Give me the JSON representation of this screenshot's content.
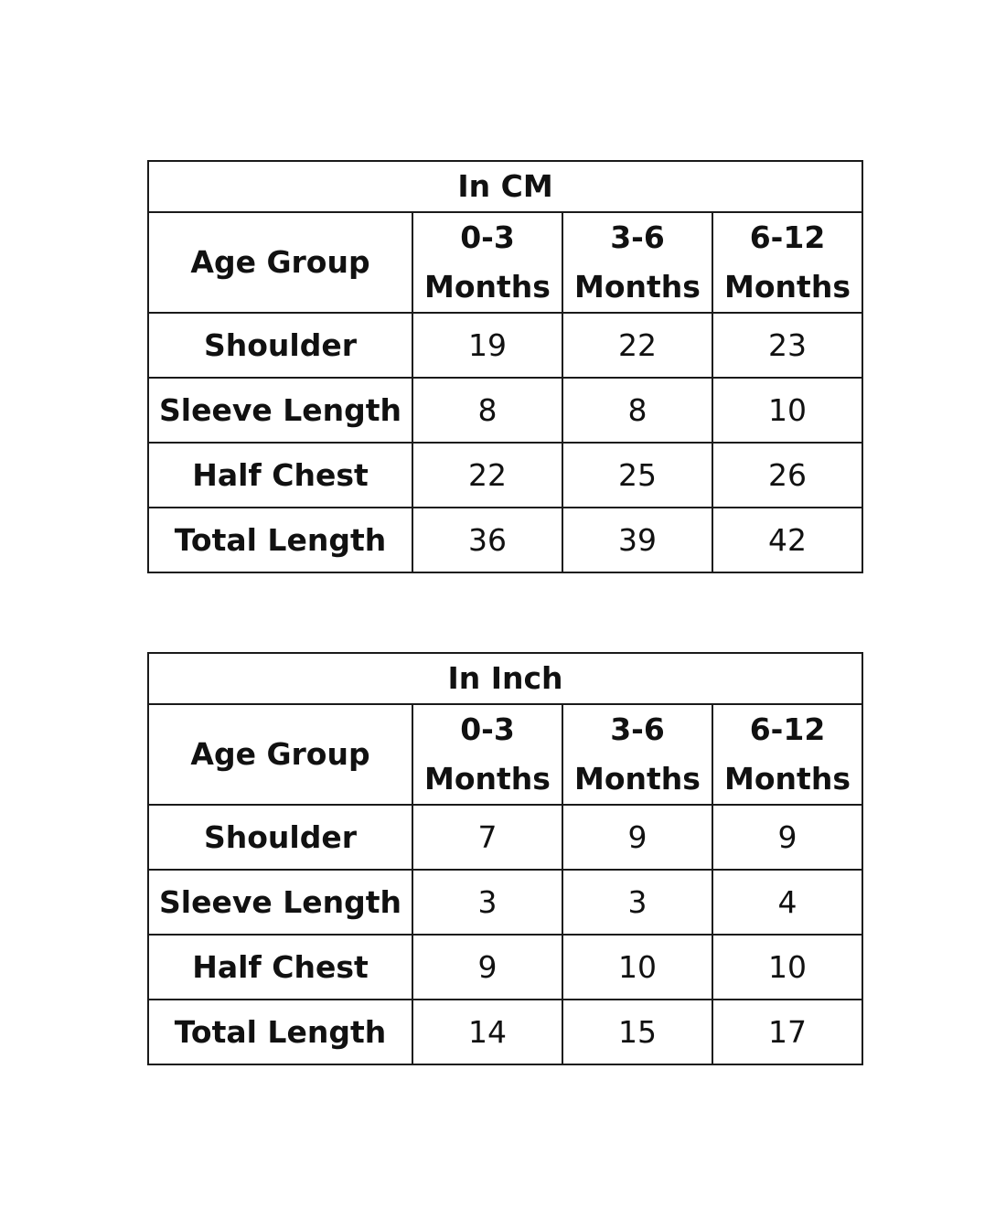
{
  "tables": [
    {
      "title": "In CM",
      "header_label": "Age Group",
      "columns": [
        {
          "line1": "0-3",
          "line2": "Months"
        },
        {
          "line1": "3-6",
          "line2": "Months"
        },
        {
          "line1": "6-12",
          "line2": "Months"
        }
      ],
      "rows": [
        {
          "label": "Shoulder",
          "values": [
            "19",
            "22",
            "23"
          ]
        },
        {
          "label": "Sleeve Length",
          "values": [
            "8",
            "8",
            "10"
          ]
        },
        {
          "label": "Half Chest",
          "values": [
            "22",
            "25",
            "26"
          ]
        },
        {
          "label": "Total Length",
          "values": [
            "36",
            "39",
            "42"
          ]
        }
      ]
    },
    {
      "title": "In Inch",
      "header_label": "Age Group",
      "columns": [
        {
          "line1": "0-3",
          "line2": "Months"
        },
        {
          "line1": "3-6",
          "line2": "Months"
        },
        {
          "line1": "6-12",
          "line2": "Months"
        }
      ],
      "rows": [
        {
          "label": "Shoulder",
          "values": [
            "7",
            "9",
            "9"
          ]
        },
        {
          "label": "Sleeve Length",
          "values": [
            "3",
            "3",
            "4"
          ]
        },
        {
          "label": "Half Chest",
          "values": [
            "9",
            "10",
            "10"
          ]
        },
        {
          "label": "Total Length",
          "values": [
            "14",
            "15",
            "17"
          ]
        }
      ]
    }
  ]
}
